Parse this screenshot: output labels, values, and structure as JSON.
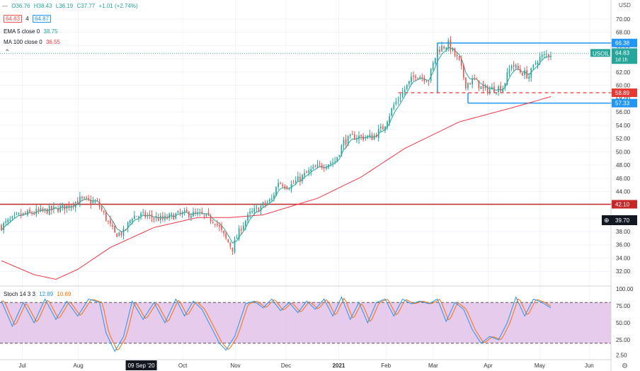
{
  "currency": "USD",
  "header": {
    "open": "O36.76",
    "high": "H38.43",
    "low": "L36.19",
    "close": "C37.77",
    "change": "+1.01 (+2.74%)",
    "bid": "64.83",
    "spread": "4",
    "ask": "64.87",
    "ema_label": "EMA 5 close 0",
    "ema_value": "38.75",
    "ma_label": "MA 100 close 0",
    "ma_value": "36.55"
  },
  "stoch": {
    "label": "Stoch 14 3 3",
    "k_value": "12.89",
    "d_value": "10.69"
  },
  "symbol_tag": {
    "symbol": "USOIL",
    "price": "64.83",
    "timeframes": "1d 1h"
  },
  "price_labels": {
    "resistance": "66.38",
    "last": "64.83",
    "dashed": "58.89",
    "support": "57.33",
    "red_line": "42.10",
    "crosshair": "39.70"
  },
  "colors": {
    "up": "#26a69a",
    "down": "#ef5350",
    "ma": "#f23645",
    "ema": "#26a69a",
    "stoch_k": "#2196f3",
    "stoch_d": "#ff6d00",
    "stoch_band": "#e1bee7",
    "level_blue": "#2196f3",
    "level_red": "#e53935"
  },
  "chart_data": {
    "type": "candlestick",
    "symbol": "USOIL",
    "timeframe": "1D",
    "y_range": [
      30,
      72
    ],
    "y_ticks": [
      32,
      34,
      36,
      38,
      40,
      42,
      44,
      46,
      48,
      50,
      52,
      54,
      56,
      58,
      60,
      62,
      64,
      66,
      68,
      70
    ],
    "x_labels": [
      "Jul",
      "Aug",
      "09 Sep '20",
      "Oct",
      "Nov",
      "Dec",
      "2021",
      "Feb",
      "Mar",
      "Apr",
      "May",
      "Jun"
    ],
    "price_anchors": [
      [
        0,
        38.8
      ],
      [
        8,
        40.4
      ],
      [
        16,
        40.9
      ],
      [
        24,
        41.3
      ],
      [
        30,
        41.8
      ],
      [
        36,
        42.8
      ],
      [
        44,
        42.3
      ],
      [
        48,
        40.0
      ],
      [
        52,
        37.6
      ],
      [
        56,
        37.8
      ],
      [
        60,
        40.3
      ],
      [
        66,
        40.4
      ],
      [
        74,
        39.8
      ],
      [
        80,
        40.5
      ],
      [
        86,
        40.7
      ],
      [
        92,
        40.4
      ],
      [
        98,
        39.6
      ],
      [
        103,
        36.8
      ],
      [
        106,
        35.5
      ],
      [
        110,
        38.7
      ],
      [
        114,
        40.6
      ],
      [
        118,
        41.5
      ],
      [
        124,
        42.8
      ],
      [
        127,
        45.5
      ],
      [
        132,
        44.8
      ],
      [
        137,
        46.0
      ],
      [
        142,
        47.2
      ],
      [
        148,
        48.1
      ],
      [
        153,
        48.6
      ],
      [
        157,
        51.5
      ],
      [
        162,
        52.3
      ],
      [
        170,
        52.2
      ],
      [
        175,
        53.6
      ],
      [
        180,
        57.0
      ],
      [
        186,
        59.9
      ],
      [
        190,
        61.7
      ],
      [
        196,
        60.9
      ],
      [
        200,
        65.4
      ],
      [
        205,
        66.2
      ],
      [
        210,
        63.5
      ],
      [
        213,
        60.2
      ],
      [
        217,
        60.8
      ],
      [
        221,
        59.3
      ],
      [
        226,
        59.5
      ],
      [
        230,
        59.7
      ],
      [
        234,
        63.2
      ],
      [
        238,
        62.1
      ],
      [
        242,
        61.4
      ],
      [
        246,
        64.0
      ],
      [
        250,
        64.6
      ],
      [
        252,
        64.8
      ]
    ],
    "ma100_anchors": [
      [
        0,
        33.6
      ],
      [
        15,
        31.5
      ],
      [
        25,
        30.8
      ],
      [
        35,
        32.3
      ],
      [
        50,
        35.6
      ],
      [
        70,
        38.6
      ],
      [
        90,
        40.1
      ],
      [
        105,
        40.1
      ],
      [
        120,
        40.5
      ],
      [
        145,
        43.0
      ],
      [
        165,
        46.2
      ],
      [
        185,
        50.5
      ],
      [
        210,
        54.5
      ],
      [
        235,
        56.7
      ],
      [
        252,
        58.3
      ]
    ],
    "stoch_anchors": [
      [
        0,
        82
      ],
      [
        5,
        45
      ],
      [
        10,
        80
      ],
      [
        15,
        50
      ],
      [
        20,
        85
      ],
      [
        25,
        55
      ],
      [
        30,
        82
      ],
      [
        35,
        60
      ],
      [
        40,
        85
      ],
      [
        45,
        80
      ],
      [
        48,
        35
      ],
      [
        52,
        8
      ],
      [
        56,
        30
      ],
      [
        60,
        82
      ],
      [
        65,
        55
      ],
      [
        70,
        80
      ],
      [
        75,
        50
      ],
      [
        80,
        85
      ],
      [
        84,
        60
      ],
      [
        88,
        82
      ],
      [
        92,
        70
      ],
      [
        96,
        45
      ],
      [
        100,
        20
      ],
      [
        103,
        10
      ],
      [
        107,
        30
      ],
      [
        112,
        78
      ],
      [
        116,
        82
      ],
      [
        120,
        72
      ],
      [
        124,
        85
      ],
      [
        128,
        68
      ],
      [
        132,
        80
      ],
      [
        136,
        65
      ],
      [
        140,
        82
      ],
      [
        144,
        70
      ],
      [
        148,
        85
      ],
      [
        152,
        60
      ],
      [
        156,
        88
      ],
      [
        160,
        55
      ],
      [
        164,
        80
      ],
      [
        168,
        50
      ],
      [
        172,
        80
      ],
      [
        176,
        85
      ],
      [
        180,
        60
      ],
      [
        184,
        85
      ],
      [
        188,
        78
      ],
      [
        192,
        82
      ],
      [
        196,
        78
      ],
      [
        200,
        85
      ],
      [
        204,
        52
      ],
      [
        208,
        80
      ],
      [
        212,
        70
      ],
      [
        216,
        40
      ],
      [
        220,
        20
      ],
      [
        224,
        30
      ],
      [
        228,
        25
      ],
      [
        232,
        50
      ],
      [
        236,
        88
      ],
      [
        240,
        60
      ],
      [
        244,
        85
      ],
      [
        248,
        80
      ],
      [
        252,
        72
      ]
    ],
    "levels": {
      "resistance": 66.38,
      "dashed": 58.89,
      "support": 57.33,
      "red_line": 42.1
    },
    "stoch_levels": {
      "upper": 80,
      "lower": 20,
      "ticks": [
        2.5,
        25,
        50,
        75,
        100
      ]
    }
  }
}
